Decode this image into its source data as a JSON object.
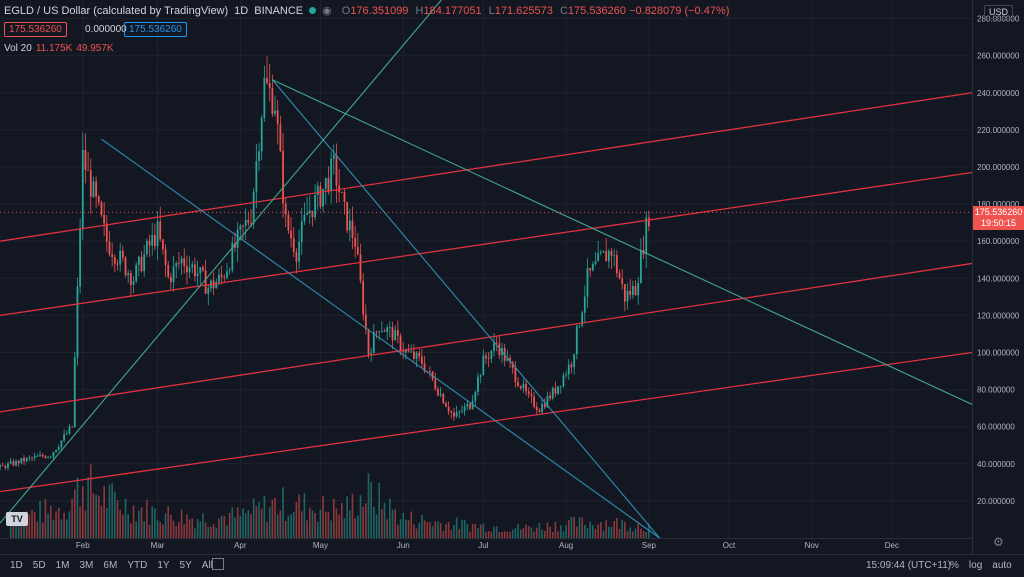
{
  "header": {
    "symbol": "EGLD / US Dollar (calculated by TradingView)",
    "interval": "1D",
    "exchange": "BINANCE",
    "open_label": "O",
    "open": "176.351099",
    "high_label": "H",
    "high": "184.177051",
    "low_label": "L",
    "low": "171.625573",
    "close_label": "C",
    "close": "175.536260",
    "change": "−0.828079 (−0.47%)"
  },
  "trade": {
    "sell": "175.536260",
    "spread": "0.000000",
    "buy": "175.536260"
  },
  "volume": {
    "label": "Vol 20",
    "value": "11.175K",
    "ma": "49.957K"
  },
  "currency": "USD",
  "last_price": {
    "price": "175.536260",
    "countdown": "19:50:15"
  },
  "bottom": {
    "ranges": [
      "1D",
      "5D",
      "1M",
      "3M",
      "6M",
      "YTD",
      "1Y",
      "5Y",
      "All"
    ],
    "time": "15:09:44 (UTC+11)",
    "options": [
      "%",
      "log",
      "auto"
    ]
  },
  "logo_text": "TV",
  "colors": {
    "bg": "#131722",
    "up": "#26a69a",
    "down": "#ef5350",
    "channel": "#e0313f",
    "blue_line": "#2e8fb0",
    "green_line": "#3fa890"
  },
  "chart_data": {
    "type": "candlestick",
    "symbol": "EGLD/USD",
    "x_ticks": [
      "Feb",
      "Mar",
      "Apr",
      "May",
      "Jun",
      "Jul",
      "Aug",
      "Sep",
      "Oct",
      "Nov",
      "Dec"
    ],
    "y_ticks": [
      "20.000000",
      "40.000000",
      "60.000000",
      "80.000000",
      "100.000000",
      "120.000000",
      "140.000000",
      "160.000000",
      "180.000000",
      "200.000000",
      "220.000000",
      "240.000000",
      "260.000000",
      "280.000000"
    ],
    "ylim": [
      0,
      290
    ],
    "xlim": [
      "2021-01-01",
      "2021-12-31"
    ],
    "last_price": 175.54,
    "close_series": {
      "x": [
        "2021-01-01",
        "2021-01-10",
        "2021-01-20",
        "2021-01-28",
        "2021-02-01",
        "2021-02-05",
        "2021-02-10",
        "2021-02-15",
        "2021-02-20",
        "2021-02-25",
        "2021-03-01",
        "2021-03-05",
        "2021-03-10",
        "2021-03-15",
        "2021-03-20",
        "2021-03-25",
        "2021-03-31",
        "2021-04-05",
        "2021-04-10",
        "2021-04-14",
        "2021-04-18",
        "2021-04-22",
        "2021-04-26",
        "2021-05-01",
        "2021-05-06",
        "2021-05-10",
        "2021-05-14",
        "2021-05-19",
        "2021-05-23",
        "2021-05-28",
        "2021-06-02",
        "2021-06-08",
        "2021-06-14",
        "2021-06-20",
        "2021-06-26",
        "2021-07-01",
        "2021-07-06",
        "2021-07-12",
        "2021-07-18",
        "2021-07-22",
        "2021-07-28",
        "2021-08-03",
        "2021-08-09",
        "2021-08-14",
        "2021-08-18",
        "2021-08-23",
        "2021-08-27",
        "2021-09-01"
      ],
      "y": [
        38,
        42,
        45,
        60,
        205,
        185,
        160,
        150,
        140,
        155,
        165,
        140,
        150,
        145,
        135,
        140,
        160,
        175,
        245,
        235,
        170,
        155,
        175,
        185,
        200,
        175,
        160,
        100,
        115,
        110,
        100,
        95,
        80,
        65,
        72,
        95,
        105,
        90,
        75,
        70,
        80,
        95,
        140,
        150,
        155,
        130,
        135,
        175
      ]
    },
    "volume": {
      "x": [
        "2021-01-05",
        "2021-01-15",
        "2021-01-25",
        "2021-02-01",
        "2021-02-10",
        "2021-02-20",
        "2021-03-01",
        "2021-03-15",
        "2021-04-01",
        "2021-04-15",
        "2021-05-01",
        "2021-05-10",
        "2021-05-19",
        "2021-06-01",
        "2021-06-15",
        "2021-07-01",
        "2021-07-15",
        "2021-08-01",
        "2021-08-15",
        "2021-09-01"
      ],
      "y": [
        20,
        25,
        30,
        55,
        40,
        30,
        25,
        20,
        22,
        35,
        30,
        28,
        45,
        20,
        15,
        12,
        10,
        14,
        16,
        12
      ]
    },
    "channel_lines": [
      {
        "x": [
          "2021-01-01",
          "2021-12-31"
        ],
        "y": [
          160,
          240
        ]
      },
      {
        "x": [
          "2021-01-01",
          "2021-12-31"
        ],
        "y": [
          120,
          197
        ]
      },
      {
        "x": [
          "2021-01-01",
          "2021-12-31"
        ],
        "y": [
          68,
          148
        ]
      },
      {
        "x": [
          "2021-01-01",
          "2021-12-31"
        ],
        "y": [
          25,
          100
        ]
      }
    ],
    "trend_lines": [
      {
        "x": [
          "2021-02-08",
          "2021-09-05"
        ],
        "y": [
          215,
          0
        ]
      },
      {
        "x": [
          "2021-04-13",
          "2021-09-05"
        ],
        "y": [
          247,
          0
        ]
      },
      {
        "x": [
          "2021-04-13",
          "2021-12-31"
        ],
        "y": [
          247,
          72
        ]
      },
      {
        "x": [
          "2021-01-01",
          "2021-06-27"
        ],
        "y": [
          8,
          310
        ]
      }
    ]
  }
}
